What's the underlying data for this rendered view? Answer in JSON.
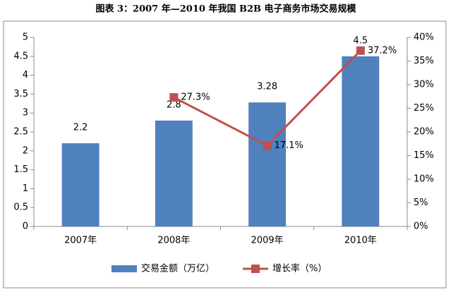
{
  "chart_data": {
    "type": "bar",
    "title": "图表 3：2007 年—2010 年我国 B2B 电子商务市场交易规模",
    "categories": [
      "2007年",
      "2008年",
      "2009年",
      "2010年"
    ],
    "series": [
      {
        "name": "交易金额（万亿）",
        "type": "bar",
        "color": "#4f81bd",
        "values": [
          2.2,
          2.8,
          3.28,
          4.5
        ]
      },
      {
        "name": "增长率（%）",
        "type": "line",
        "axis": "y2",
        "color": "#c0504d",
        "values": [
          null,
          27.3,
          17.1,
          37.2
        ],
        "value_labels": [
          null,
          "27.3%",
          "17.1%",
          "37.2%"
        ]
      }
    ],
    "ylim": [
      0,
      5
    ],
    "yticks": [
      0,
      0.5,
      1,
      1.5,
      2,
      2.5,
      3,
      3.5,
      4,
      4.5,
      5
    ],
    "y2lim": [
      0,
      40
    ],
    "y2ticks": [
      {
        "value": 0,
        "label": "0%"
      },
      {
        "value": 5,
        "label": "5%"
      },
      {
        "value": 10,
        "label": "10%"
      },
      {
        "value": 15,
        "label": "15%"
      },
      {
        "value": 20,
        "label": "20%"
      },
      {
        "value": 25,
        "label": "25%"
      },
      {
        "value": 30,
        "label": "30%"
      },
      {
        "value": 35,
        "label": "35%"
      },
      {
        "value": 40,
        "label": "40%"
      }
    ],
    "grid": false,
    "legend": "bottom"
  }
}
